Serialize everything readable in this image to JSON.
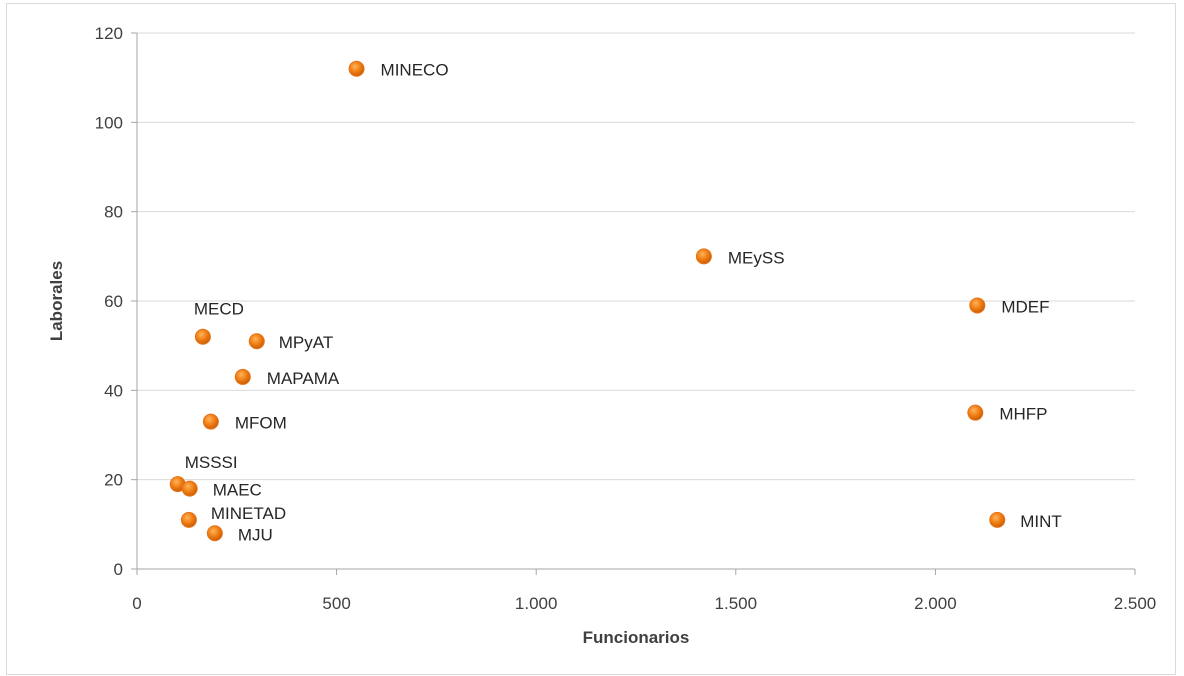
{
  "chart_data": {
    "type": "scatter",
    "title": "",
    "xlabel": "Funcionarios",
    "ylabel": "Laborales",
    "xlim": [
      0,
      2500
    ],
    "ylim": [
      0,
      120
    ],
    "x_ticks": [
      0,
      500,
      1000,
      1500,
      2000,
      2500
    ],
    "x_tick_labels": [
      "0",
      "500",
      "1.000",
      "1.500",
      "2.000",
      "2.500"
    ],
    "y_ticks": [
      0,
      20,
      40,
      60,
      80,
      100,
      120
    ],
    "y_tick_labels": [
      "0",
      "20",
      "40",
      "60",
      "80",
      "100",
      "120"
    ],
    "grid": "horizontal",
    "marker_color": "#f07e14",
    "points": [
      {
        "label": "MINECO",
        "x": 550,
        "y": 112
      },
      {
        "label": "MEySS",
        "x": 1420,
        "y": 70
      },
      {
        "label": "MDEF",
        "x": 2105,
        "y": 59
      },
      {
        "label": "MECD",
        "x": 165,
        "y": 52
      },
      {
        "label": "MPyAT",
        "x": 300,
        "y": 51
      },
      {
        "label": "MAPAMA",
        "x": 265,
        "y": 43
      },
      {
        "label": "MHFP",
        "x": 2100,
        "y": 35
      },
      {
        "label": "MFOM",
        "x": 185,
        "y": 33
      },
      {
        "label": "MSSSI",
        "x": 102,
        "y": 19
      },
      {
        "label": "MAEC",
        "x": 132,
        "y": 18
      },
      {
        "label": "MINETAD",
        "x": 130,
        "y": 11
      },
      {
        "label": "MINT",
        "x": 2155,
        "y": 11
      },
      {
        "label": "MJU",
        "x": 195,
        "y": 8
      }
    ]
  }
}
